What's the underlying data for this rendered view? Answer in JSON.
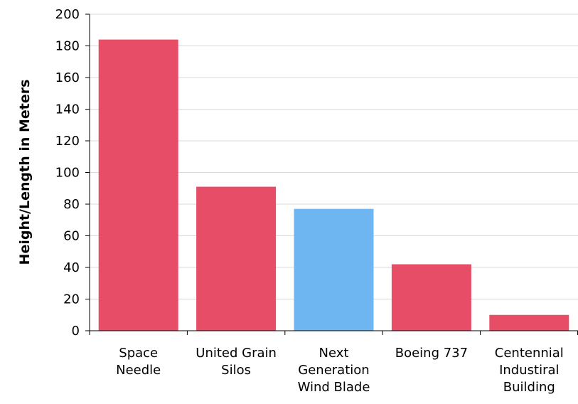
{
  "chart_data": {
    "type": "bar",
    "title": "",
    "xlabel": "",
    "ylabel": "Height/Length in Meters",
    "ylim": [
      0,
      200
    ],
    "yticks": [
      0,
      20,
      40,
      60,
      80,
      100,
      120,
      140,
      160,
      180,
      200
    ],
    "grid": true,
    "categories": [
      [
        "Space",
        "Needle"
      ],
      [
        "United Grain",
        "Silos"
      ],
      [
        "Next",
        "Generation",
        "Wind Blade"
      ],
      [
        "Boeing 737"
      ],
      [
        "Centennial",
        "Industiral",
        "Building"
      ]
    ],
    "values": [
      184,
      91,
      77,
      42,
      10
    ],
    "colors": [
      "#e84d68",
      "#e84d68",
      "#6db6f2",
      "#e84d68",
      "#e84d68"
    ]
  }
}
